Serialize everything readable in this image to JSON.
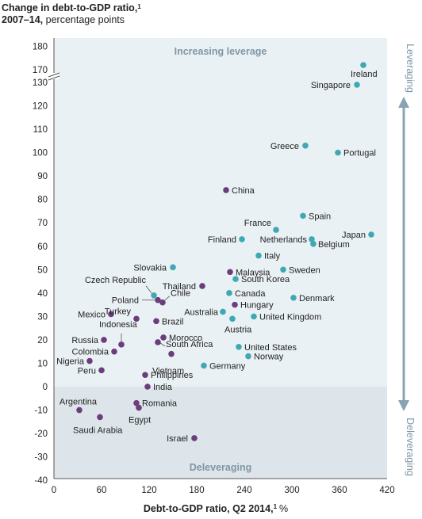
{
  "title": {
    "line1": "Change in debt-to-GDP ratio,",
    "line1_footnote": "1",
    "line2_bold": "2007–14,",
    "line2_rest": "percentage points"
  },
  "region_labels": {
    "top": "Increasing leverage",
    "bottom": "Deleveraging"
  },
  "side_labels": {
    "top": "Leveraging",
    "bottom": "Deleveraging"
  },
  "colors": {
    "panel_top": "#eaf1f4",
    "panel_bottom": "#dde5ea",
    "advanced": "#3fa9b3",
    "developing": "#6b3d7c",
    "arrow": "#8aa3b3",
    "region_text": "#7f96a6"
  },
  "chart_data": {
    "type": "scatter",
    "xlabel": "Debt-to-GDP ratio, Q2 2014,",
    "xlabel_footnote": "1",
    "xlabel_unit": "%",
    "xlim": [
      0,
      420
    ],
    "x_ticks": [
      0,
      60,
      120,
      180,
      240,
      300,
      360,
      420
    ],
    "y_ticks": [
      -40,
      -30,
      -20,
      -10,
      0,
      10,
      20,
      30,
      40,
      50,
      60,
      70,
      80,
      90,
      100,
      110,
      120,
      130,
      170,
      180
    ],
    "ylim": [
      -40,
      180
    ],
    "y_axis_break": [
      130,
      170
    ],
    "grid": false,
    "points": [
      {
        "name": "Ireland",
        "x": 390,
        "y": 172,
        "group": "advanced"
      },
      {
        "name": "Singapore",
        "x": 382,
        "y": 129,
        "group": "advanced"
      },
      {
        "name": "Greece",
        "x": 317,
        "y": 103,
        "group": "advanced"
      },
      {
        "name": "Portugal",
        "x": 358,
        "y": 100,
        "group": "advanced"
      },
      {
        "name": "China",
        "x": 217,
        "y": 84,
        "group": "developing"
      },
      {
        "name": "Spain",
        "x": 314,
        "y": 73,
        "group": "advanced"
      },
      {
        "name": "France",
        "x": 280,
        "y": 67,
        "group": "advanced"
      },
      {
        "name": "Netherlands",
        "x": 325,
        "y": 63,
        "group": "advanced"
      },
      {
        "name": "Japan",
        "x": 400,
        "y": 65,
        "group": "advanced"
      },
      {
        "name": "Finland",
        "x": 237,
        "y": 63,
        "group": "advanced"
      },
      {
        "name": "Belgium",
        "x": 327,
        "y": 61,
        "group": "advanced"
      },
      {
        "name": "Italy",
        "x": 258,
        "y": 56,
        "group": "advanced"
      },
      {
        "name": "Slovakia",
        "x": 150,
        "y": 51,
        "group": "advanced"
      },
      {
        "name": "Sweden",
        "x": 289,
        "y": 50,
        "group": "advanced"
      },
      {
        "name": "Malaysia",
        "x": 222,
        "y": 49,
        "group": "developing"
      },
      {
        "name": "South Korea",
        "x": 229,
        "y": 46,
        "group": "advanced"
      },
      {
        "name": "Thailand",
        "x": 187,
        "y": 43,
        "group": "developing"
      },
      {
        "name": "Czech Republic",
        "x": 126,
        "y": 39,
        "group": "advanced"
      },
      {
        "name": "Canada",
        "x": 221,
        "y": 40,
        "group": "advanced"
      },
      {
        "name": "Poland",
        "x": 131,
        "y": 37,
        "group": "developing"
      },
      {
        "name": "Chile",
        "x": 137,
        "y": 36,
        "group": "developing"
      },
      {
        "name": "Denmark",
        "x": 302,
        "y": 38,
        "group": "advanced"
      },
      {
        "name": "Hungary",
        "x": 228,
        "y": 35,
        "group": "developing"
      },
      {
        "name": "Australia",
        "x": 213,
        "y": 32,
        "group": "advanced"
      },
      {
        "name": "Mexico",
        "x": 72,
        "y": 31,
        "group": "developing"
      },
      {
        "name": "Turkey",
        "x": 104,
        "y": 29,
        "group": "developing"
      },
      {
        "name": "Brazil",
        "x": 129,
        "y": 28,
        "group": "developing"
      },
      {
        "name": "Austria",
        "x": 225,
        "y": 29,
        "group": "advanced"
      },
      {
        "name": "United Kingdom",
        "x": 252,
        "y": 30,
        "group": "advanced"
      },
      {
        "name": "Indonesia",
        "x": 85,
        "y": 18,
        "group": "developing"
      },
      {
        "name": "Russia",
        "x": 63,
        "y": 20,
        "group": "developing"
      },
      {
        "name": "Morocco",
        "x": 138,
        "y": 21,
        "group": "developing"
      },
      {
        "name": "South Africa",
        "x": 131,
        "y": 19,
        "group": "developing"
      },
      {
        "name": "United States",
        "x": 233,
        "y": 17,
        "group": "advanced"
      },
      {
        "name": "Colombia",
        "x": 76,
        "y": 15,
        "group": "developing"
      },
      {
        "name": "Vietnam",
        "x": 148,
        "y": 14,
        "group": "developing"
      },
      {
        "name": "Norway",
        "x": 245,
        "y": 13,
        "group": "advanced"
      },
      {
        "name": "Nigeria",
        "x": 45,
        "y": 11,
        "group": "developing"
      },
      {
        "name": "Germany",
        "x": 189,
        "y": 9,
        "group": "advanced"
      },
      {
        "name": "Peru",
        "x": 60,
        "y": 7,
        "group": "developing"
      },
      {
        "name": "Philippines",
        "x": 115,
        "y": 5,
        "group": "developing"
      },
      {
        "name": "India",
        "x": 118,
        "y": 0,
        "group": "developing"
      },
      {
        "name": "Romania",
        "x": 104,
        "y": -7,
        "group": "developing"
      },
      {
        "name": "Egypt",
        "x": 107,
        "y": -9,
        "group": "developing"
      },
      {
        "name": "Argentina",
        "x": 32,
        "y": -10,
        "group": "developing"
      },
      {
        "name": "Saudi Arabia",
        "x": 58,
        "y": -13,
        "group": "developing"
      },
      {
        "name": "Israel",
        "x": 177,
        "y": -22,
        "group": "developing"
      }
    ]
  }
}
